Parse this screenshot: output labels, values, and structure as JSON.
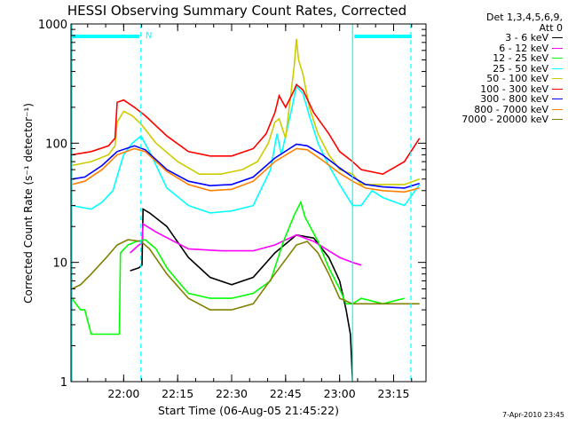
{
  "chart_data": {
    "type": "line",
    "title": "HESSI Observing Summary Count Rates, Corrected",
    "ylabel": "Corrected Count Rate (s⁻¹ detector⁻¹)",
    "xlabel": "Start Time (06-Aug-05 21:45:22)",
    "log_y": true,
    "ylim": [
      1,
      1000
    ],
    "xlim": [
      21.7561,
      23.4
    ],
    "x_ticks": [
      {
        "v": 22.0,
        "label": "22:00"
      },
      {
        "v": 22.25,
        "label": "22:15"
      },
      {
        "v": 22.5,
        "label": "22:30"
      },
      {
        "v": 22.75,
        "label": "22:45"
      },
      {
        "v": 23.0,
        "label": "23:00"
      },
      {
        "v": 23.25,
        "label": "23:15"
      }
    ],
    "y_ticks": [
      {
        "v": 1,
        "label": "1"
      },
      {
        "v": 10,
        "label": "10"
      },
      {
        "v": 100,
        "label": "100"
      },
      {
        "v": 1000,
        "label": "1000"
      }
    ],
    "legend_header": [
      "Det 1,3,4,5,6,9,",
      "Att 0"
    ],
    "vlines": [
      22.08,
      23.06,
      23.33
    ],
    "flag_N_label": "N",
    "footer": "7-Apr-2010 23:45",
    "series": [
      {
        "name": "3 - 6 keV",
        "color": "#000000",
        "points": [
          [
            22.03,
            8.5
          ],
          [
            22.07,
            9
          ],
          [
            22.085,
            9.5
          ],
          [
            22.09,
            28
          ],
          [
            22.12,
            26
          ],
          [
            22.2,
            20
          ],
          [
            22.3,
            11
          ],
          [
            22.4,
            7.5
          ],
          [
            22.5,
            6.5
          ],
          [
            22.6,
            7.5
          ],
          [
            22.7,
            12
          ],
          [
            22.8,
            17
          ],
          [
            22.88,
            16
          ],
          [
            22.95,
            11
          ],
          [
            23.0,
            7
          ],
          [
            23.03,
            4
          ],
          [
            23.05,
            2.5
          ],
          [
            23.06,
            1
          ]
        ]
      },
      {
        "name": "6 - 12 keV",
        "color": "#ff00ff",
        "points": [
          [
            22.03,
            12
          ],
          [
            22.07,
            14
          ],
          [
            22.085,
            14.5
          ],
          [
            22.09,
            21
          ],
          [
            22.15,
            18
          ],
          [
            22.3,
            13
          ],
          [
            22.45,
            12.5
          ],
          [
            22.6,
            12.5
          ],
          [
            22.7,
            14
          ],
          [
            22.8,
            17
          ],
          [
            22.88,
            15
          ],
          [
            22.95,
            12.5
          ],
          [
            23.0,
            11
          ],
          [
            23.06,
            10
          ],
          [
            23.1,
            9.5
          ]
        ]
      },
      {
        "name": "12 - 25 keV",
        "color": "#00ff00",
        "points": [
          [
            21.76,
            5
          ],
          [
            21.8,
            4
          ],
          [
            21.82,
            4
          ],
          [
            21.85,
            2.5
          ],
          [
            21.9,
            2.5
          ],
          [
            21.95,
            2.5
          ],
          [
            21.98,
            2.5
          ],
          [
            21.985,
            12
          ],
          [
            22.02,
            14
          ],
          [
            22.06,
            15
          ],
          [
            22.1,
            15.5
          ],
          [
            22.15,
            13
          ],
          [
            22.2,
            9
          ],
          [
            22.25,
            7
          ],
          [
            22.3,
            5.5
          ],
          [
            22.4,
            5
          ],
          [
            22.5,
            5
          ],
          [
            22.6,
            5.5
          ],
          [
            22.68,
            7
          ],
          [
            22.74,
            15
          ],
          [
            22.79,
            25
          ],
          [
            22.82,
            32
          ],
          [
            22.84,
            24
          ],
          [
            22.9,
            15
          ],
          [
            22.95,
            9
          ],
          [
            23.0,
            6
          ],
          [
            23.03,
            4.5
          ],
          [
            23.06,
            4.5
          ],
          [
            23.1,
            5
          ],
          [
            23.2,
            4.5
          ],
          [
            23.3,
            5
          ]
        ]
      },
      {
        "name": "25 - 50 keV",
        "color": "#00ffff",
        "points": [
          [
            21.76,
            30
          ],
          [
            21.85,
            28
          ],
          [
            21.9,
            32
          ],
          [
            21.95,
            40
          ],
          [
            22.0,
            80
          ],
          [
            22.04,
            100
          ],
          [
            22.08,
            115
          ],
          [
            22.12,
            85
          ],
          [
            22.2,
            42
          ],
          [
            22.3,
            30
          ],
          [
            22.4,
            26
          ],
          [
            22.5,
            27
          ],
          [
            22.6,
            30
          ],
          [
            22.68,
            60
          ],
          [
            22.71,
            120
          ],
          [
            22.73,
            80
          ],
          [
            22.78,
            200
          ],
          [
            22.8,
            300
          ],
          [
            22.83,
            260
          ],
          [
            22.86,
            170
          ],
          [
            22.9,
            100
          ],
          [
            22.95,
            65
          ],
          [
            23.0,
            45
          ],
          [
            23.06,
            30
          ],
          [
            23.1,
            30
          ],
          [
            23.15,
            40
          ],
          [
            23.2,
            35
          ],
          [
            23.3,
            30
          ],
          [
            23.37,
            45
          ]
        ]
      },
      {
        "name": "50 - 100 keV",
        "color": "#cccc00",
        "points": [
          [
            21.76,
            65
          ],
          [
            21.85,
            70
          ],
          [
            21.93,
            80
          ],
          [
            21.96,
            95
          ],
          [
            21.97,
            150
          ],
          [
            22.0,
            185
          ],
          [
            22.04,
            170
          ],
          [
            22.08,
            145
          ],
          [
            22.15,
            100
          ],
          [
            22.25,
            70
          ],
          [
            22.35,
            55
          ],
          [
            22.45,
            55
          ],
          [
            22.55,
            60
          ],
          [
            22.62,
            70
          ],
          [
            22.67,
            100
          ],
          [
            22.7,
            150
          ],
          [
            22.72,
            160
          ],
          [
            22.75,
            110
          ],
          [
            22.79,
            450
          ],
          [
            22.8,
            750
          ],
          [
            22.81,
            500
          ],
          [
            22.83,
            380
          ],
          [
            22.86,
            200
          ],
          [
            22.9,
            120
          ],
          [
            22.95,
            80
          ],
          [
            23.0,
            60
          ],
          [
            23.06,
            55
          ],
          [
            23.1,
            45
          ],
          [
            23.2,
            45
          ],
          [
            23.3,
            45
          ],
          [
            23.37,
            50
          ]
        ]
      },
      {
        "name": "100 - 300 keV",
        "color": "#ff0000",
        "points": [
          [
            21.76,
            80
          ],
          [
            21.85,
            85
          ],
          [
            21.93,
            95
          ],
          [
            21.96,
            110
          ],
          [
            21.97,
            220
          ],
          [
            22.0,
            230
          ],
          [
            22.05,
            200
          ],
          [
            22.1,
            170
          ],
          [
            22.2,
            115
          ],
          [
            22.3,
            85
          ],
          [
            22.4,
            78
          ],
          [
            22.5,
            78
          ],
          [
            22.6,
            90
          ],
          [
            22.66,
            120
          ],
          [
            22.7,
            180
          ],
          [
            22.72,
            250
          ],
          [
            22.75,
            200
          ],
          [
            22.79,
            280
          ],
          [
            22.8,
            310
          ],
          [
            22.83,
            280
          ],
          [
            22.88,
            180
          ],
          [
            22.95,
            120
          ],
          [
            23.0,
            85
          ],
          [
            23.06,
            70
          ],
          [
            23.1,
            60
          ],
          [
            23.2,
            55
          ],
          [
            23.3,
            70
          ],
          [
            23.37,
            110
          ]
        ]
      },
      {
        "name": "300 - 800 keV",
        "color": "#0000ff",
        "points": [
          [
            21.76,
            50
          ],
          [
            21.82,
            52
          ],
          [
            21.9,
            65
          ],
          [
            21.97,
            85
          ],
          [
            22.05,
            95
          ],
          [
            22.1,
            88
          ],
          [
            22.2,
            60
          ],
          [
            22.3,
            48
          ],
          [
            22.4,
            44
          ],
          [
            22.5,
            45
          ],
          [
            22.6,
            52
          ],
          [
            22.7,
            75
          ],
          [
            22.8,
            98
          ],
          [
            22.85,
            95
          ],
          [
            22.92,
            80
          ],
          [
            23.0,
            62
          ],
          [
            23.06,
            52
          ],
          [
            23.12,
            45
          ],
          [
            23.2,
            43
          ],
          [
            23.3,
            42
          ],
          [
            23.37,
            46
          ]
        ]
      },
      {
        "name": "800 - 7000 keV",
        "color": "#ff8000",
        "points": [
          [
            21.76,
            45
          ],
          [
            21.82,
            48
          ],
          [
            21.9,
            60
          ],
          [
            21.97,
            80
          ],
          [
            22.05,
            90
          ],
          [
            22.1,
            85
          ],
          [
            22.2,
            58
          ],
          [
            22.3,
            45
          ],
          [
            22.4,
            40
          ],
          [
            22.5,
            41
          ],
          [
            22.6,
            48
          ],
          [
            22.7,
            70
          ],
          [
            22.8,
            90
          ],
          [
            22.85,
            88
          ],
          [
            22.92,
            72
          ],
          [
            23.0,
            56
          ],
          [
            23.06,
            48
          ],
          [
            23.12,
            42
          ],
          [
            23.2,
            40
          ],
          [
            23.3,
            39
          ],
          [
            23.37,
            42
          ]
        ]
      },
      {
        "name": "7000 - 20000 keV",
        "color": "#808000",
        "points": [
          [
            21.76,
            6
          ],
          [
            21.8,
            6.5
          ],
          [
            21.85,
            8
          ],
          [
            21.92,
            11
          ],
          [
            21.97,
            14
          ],
          [
            22.02,
            15.5
          ],
          [
            22.08,
            15
          ],
          [
            22.12,
            13
          ],
          [
            22.2,
            8
          ],
          [
            22.3,
            5
          ],
          [
            22.4,
            4
          ],
          [
            22.5,
            4
          ],
          [
            22.6,
            4.5
          ],
          [
            22.7,
            8
          ],
          [
            22.8,
            14
          ],
          [
            22.85,
            15
          ],
          [
            22.9,
            12
          ],
          [
            22.95,
            8
          ],
          [
            23.0,
            5
          ],
          [
            23.06,
            4.5
          ],
          [
            23.15,
            4.5
          ],
          [
            23.25,
            4.5
          ],
          [
            23.37,
            4.5
          ]
        ]
      }
    ]
  }
}
